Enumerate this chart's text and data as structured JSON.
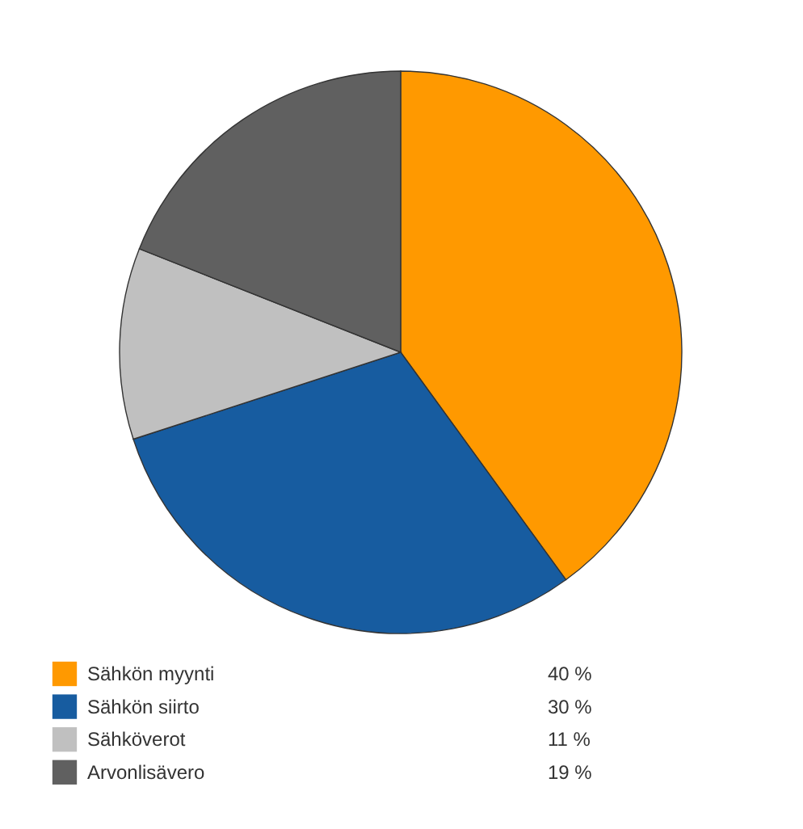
{
  "chart_data": {
    "type": "pie",
    "categories": [
      "Sähkön myynti",
      "Sähkön siirto",
      "Sähköverot",
      "Arvonlisävero"
    ],
    "values": [
      40,
      30,
      11,
      19
    ],
    "colors": [
      "#ff9900",
      "#175ca0",
      "#c0c0c0",
      "#606060"
    ],
    "value_labels": [
      "40 %",
      "30 %",
      "11 %",
      "19 %"
    ],
    "legend": "bottom"
  }
}
